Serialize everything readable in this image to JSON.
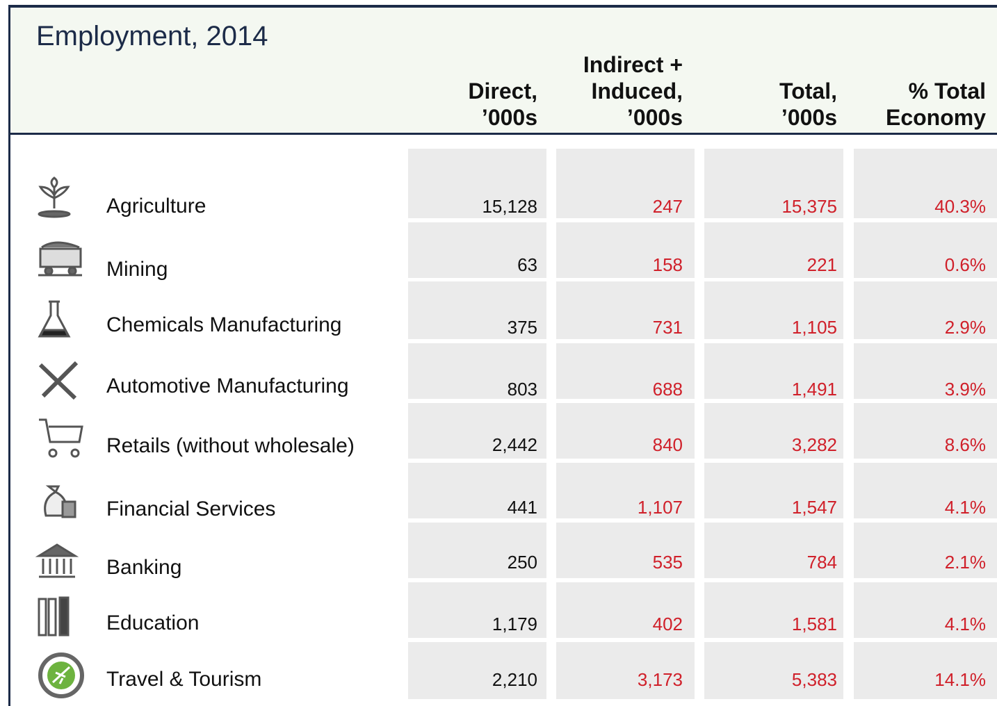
{
  "header": {
    "title": "Employment, 2014"
  },
  "table": {
    "columns": [
      [
        "Direct,",
        "’000s"
      ],
      [
        "Indirect +",
        "Induced,",
        "’000s"
      ],
      [
        "Total,",
        "’000s"
      ],
      [
        "% Total",
        "Economy"
      ]
    ],
    "rows": [
      {
        "label": "Agriculture",
        "cells": [
          "15,128",
          "247",
          "15,375",
          "40.3%"
        ]
      },
      {
        "label": "Mining",
        "cells": [
          "63",
          "158",
          "221",
          "0.6%"
        ]
      },
      {
        "label": "Chemicals Manufacturing",
        "cells": [
          "375",
          "731",
          "1,105",
          "2.9%"
        ]
      },
      {
        "label": "Automotive Manufacturing",
        "cells": [
          "803",
          "688",
          "1,491",
          "3.9%"
        ]
      },
      {
        "label": "Retails (without wholesale)",
        "cells": [
          "2,442",
          "840",
          "3,282",
          "8.6%"
        ]
      },
      {
        "label": "Financial Services",
        "cells": [
          "441",
          "1,107",
          "1,547",
          "4.1%"
        ]
      },
      {
        "label": "Banking",
        "cells": [
          "250",
          "535",
          "784",
          "2.1%"
        ]
      },
      {
        "label": "Education",
        "cells": [
          "1,179",
          "402",
          "1,581",
          "4.1%"
        ]
      },
      {
        "label": "Travel & Tourism",
        "cells": [
          "2,210",
          "3,173",
          "5,383",
          "14.1%"
        ]
      }
    ]
  }
}
